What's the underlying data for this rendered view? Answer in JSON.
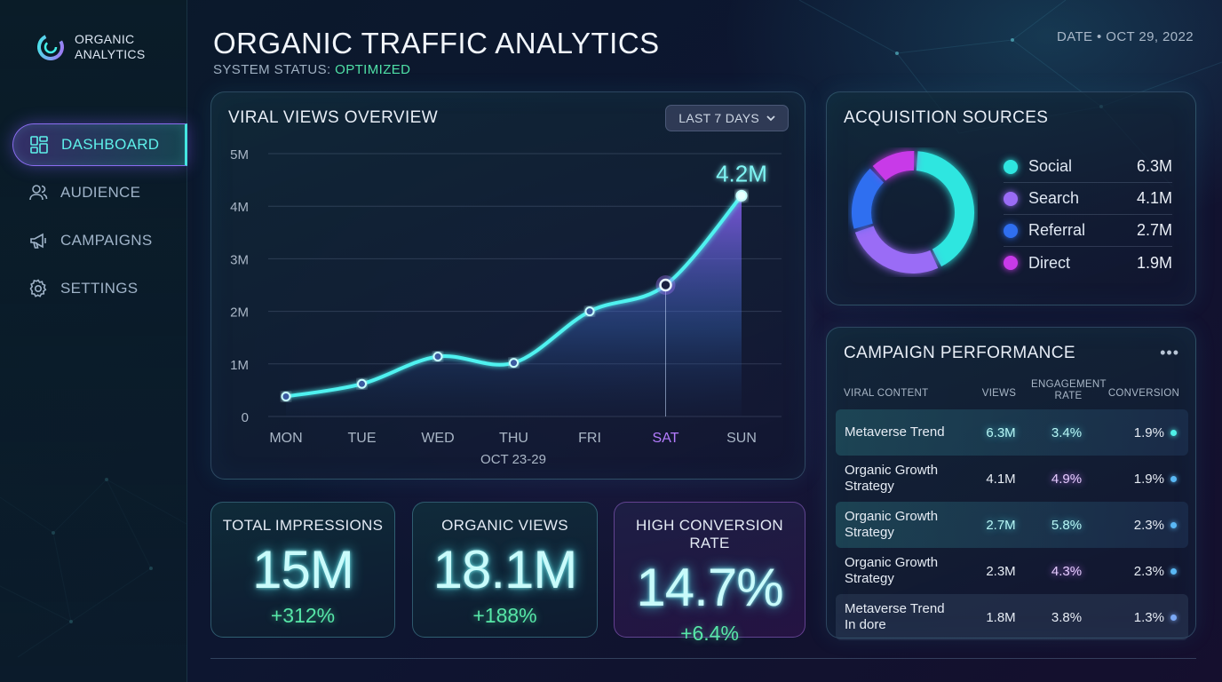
{
  "brand": {
    "line1": "ORGANIC",
    "line2": "ANALYTICS"
  },
  "nav": [
    {
      "label": "DASHBOARD",
      "icon": "dashboard-icon",
      "active": true
    },
    {
      "label": "AUDIENCE",
      "icon": "users-icon"
    },
    {
      "label": "CAMPAIGNS",
      "icon": "megaphone-icon"
    },
    {
      "label": "SETTINGS",
      "icon": "gear-icon"
    }
  ],
  "header": {
    "title": "ORGANIC TRAFFIC ANALYTICS",
    "status_label": "SYSTEM STATUS:",
    "status_value": "OPTIMIZED",
    "date": "DATE • OCT 29, 2022"
  },
  "viral": {
    "title": "VIRAL VIEWS OVERVIEW",
    "range_label": "LAST 7 DAYS"
  },
  "chart_data": {
    "type": "area",
    "title": "VIRAL VIEWS OVERVIEW",
    "categories": [
      "MON",
      "TUE",
      "WED",
      "THU",
      "FRI",
      "SAT",
      "SUN"
    ],
    "values": [
      0.38,
      0.62,
      1.14,
      1.02,
      2.0,
      2.5,
      4.2
    ],
    "y_ticks": [
      "0",
      "1M",
      "2M",
      "3M",
      "4M",
      "5M"
    ],
    "ylim": [
      0,
      5
    ],
    "xlabel": "OCT 23-29",
    "highlight_category": "SAT",
    "peak_label": "4.2M",
    "grid": true,
    "colors": {
      "line": "#4ff2f0",
      "fill_top": "#8c5cf0",
      "highlight": "#b47cff"
    }
  },
  "acquisition": {
    "title": "ACQUISITION SOURCES",
    "sources": [
      {
        "name": "Social",
        "value": "6.3M",
        "amount": 6.3,
        "color": "#2ee6e0"
      },
      {
        "name": "Search",
        "value": "4.1M",
        "amount": 4.1,
        "color": "#9a6cf6"
      },
      {
        "name": "Referral",
        "value": "2.7M",
        "amount": 2.7,
        "color": "#2f6ff0"
      },
      {
        "name": "Direct",
        "value": "1.9M",
        "amount": 1.9,
        "color": "#c83ae8"
      }
    ]
  },
  "campaign": {
    "title": "CAMPAIGN PERFORMANCE",
    "columns": {
      "content": "VIRAL CONTENT",
      "views": "VIEWS",
      "engagement_l1": "ENGAGEMENT",
      "engagement_l2": "RATE",
      "conversion": "CONVERSION"
    },
    "rows": [
      {
        "l1": "Metaverse Trend",
        "l2": "",
        "views": "6.3M",
        "eng": "3.4%",
        "conv": "1.9%",
        "dot": "#4ff2e8",
        "style": "hl",
        "vglow": "c",
        "eglow": "c"
      },
      {
        "l1": "Organic Growth",
        "l2": "Strategy",
        "views": "4.1M",
        "eng": "4.9%",
        "conv": "1.9%",
        "dot": "#5ab8f5",
        "style": "",
        "vglow": "",
        "eglow": "p"
      },
      {
        "l1": "Organic Growth",
        "l2": "Strategy",
        "views": "2.7M",
        "eng": "5.8%",
        "conv": "2.3%",
        "dot": "#5ab8f5",
        "style": "hl",
        "vglow": "c",
        "eglow": "c"
      },
      {
        "l1": "Organic Growth",
        "l2": "Strategy",
        "views": "2.3M",
        "eng": "4.3%",
        "conv": "2.3%",
        "dot": "#5ab8f5",
        "style": "",
        "vglow": "",
        "eglow": "p"
      },
      {
        "l1": "Metaverse Trend",
        "l2": "In dore",
        "views": "1.8M",
        "eng": "3.8%",
        "conv": "1.3%",
        "dot": "#7aa8f5",
        "style": "hl2",
        "vglow": "",
        "eglow": ""
      }
    ]
  },
  "kpis": [
    {
      "label": "TOTAL IMPRESSIONS",
      "value": "15M",
      "delta": "+312%"
    },
    {
      "label": "ORGANIC VIEWS",
      "value": "18.1M",
      "delta": "+188%"
    },
    {
      "label": "HIGH CONVERSION RATE",
      "value": "14.7%",
      "delta": "+6.4%"
    }
  ]
}
